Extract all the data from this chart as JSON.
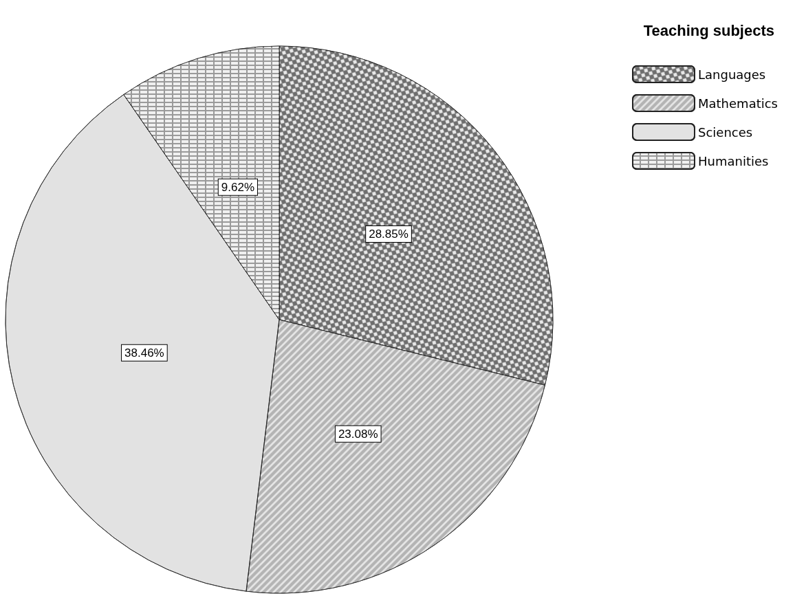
{
  "chart_data": {
    "type": "pie",
    "legend_title": "Teaching subjects",
    "categories": [
      "Languages",
      "Mathematics",
      "Sciences",
      "Humanities"
    ],
    "values": [
      28.85,
      23.08,
      38.46,
      9.62
    ],
    "value_labels": [
      "28.85%",
      "23.08%",
      "38.46%",
      "9.62%"
    ],
    "colors": [
      "#6e6e6e",
      "#b4b4b4",
      "#e2e2e2",
      "#9a9a9a"
    ],
    "legend": "top right"
  }
}
